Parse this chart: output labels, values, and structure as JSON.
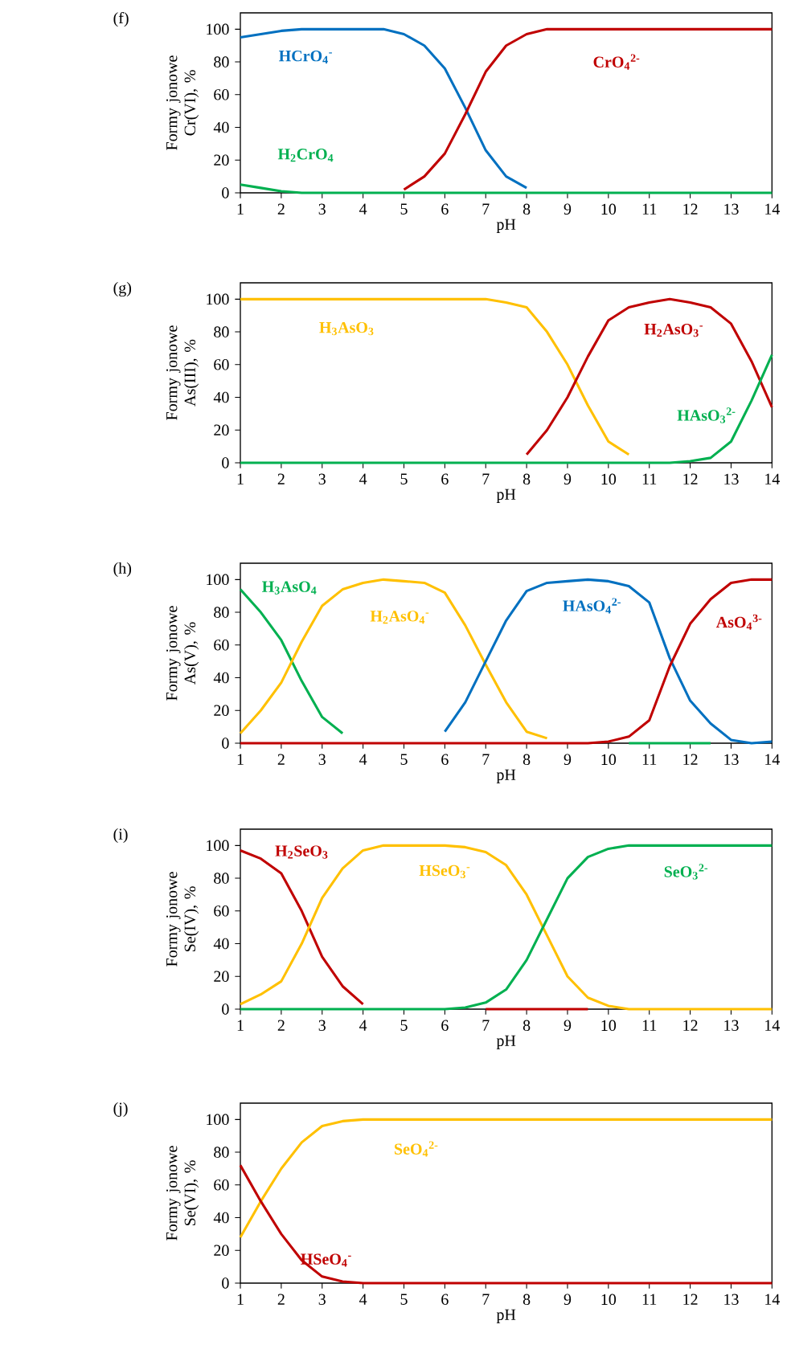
{
  "chart_data": [
    {
      "type": "line",
      "title": "(f)",
      "xlabel": "pH",
      "ylabel": "Formy jonowe Cr(VI), %",
      "x": [
        1,
        1.5,
        2,
        2.5,
        3,
        3.5,
        4,
        4.5,
        5,
        5.5,
        6,
        6.5,
        7,
        7.5,
        8,
        8.5,
        9,
        9.5,
        10,
        10.5,
        11,
        11.5,
        12,
        12.5,
        13,
        13.5,
        14
      ],
      "xlim": [
        1,
        14
      ],
      "ylim": [
        0,
        110
      ],
      "xticks": [
        1,
        2,
        3,
        4,
        5,
        6,
        7,
        8,
        9,
        10,
        11,
        12,
        13,
        14
      ],
      "yticks": [
        0,
        20,
        40,
        60,
        80,
        100
      ],
      "series": [
        {
          "name": "HCrO$_{4}$$^{-}$",
          "color": "#0070c0",
          "values": [
            95,
            97,
            99,
            100,
            100,
            100,
            100,
            100,
            97,
            90,
            76,
            52,
            26,
            10,
            3,
            null,
            null,
            null,
            null,
            null,
            null,
            null,
            null,
            null,
            null,
            null,
            null
          ]
        },
        {
          "name": "CrO$_{4}$$^{2-}$",
          "color": "#c00000",
          "values": [
            null,
            null,
            null,
            null,
            null,
            null,
            null,
            null,
            2,
            10,
            24,
            48,
            74,
            90,
            97,
            100,
            100,
            100,
            100,
            100,
            100,
            100,
            100,
            100,
            100,
            100,
            100
          ]
        },
        {
          "name": "H$_{2}$CrO$_{4}$",
          "color": "#00b050",
          "values": [
            5,
            3,
            1,
            0,
            0,
            0,
            0,
            0,
            0,
            0,
            0,
            0,
            0,
            0,
            0,
            0,
            0,
            0,
            0,
            0,
            0,
            0,
            0,
            0,
            0,
            0,
            0
          ]
        }
      ]
    },
    {
      "type": "line",
      "title": "(g)",
      "xlabel": "pH",
      "ylabel": "Formy jonowe As(III), %",
      "x": [
        1,
        1.5,
        2,
        2.5,
        3,
        3.5,
        4,
        4.5,
        5,
        5.5,
        6,
        6.5,
        7,
        7.5,
        8,
        8.5,
        9,
        9.5,
        10,
        10.5,
        11,
        11.5,
        12,
        12.5,
        13,
        13.5,
        14
      ],
      "xlim": [
        1,
        14
      ],
      "ylim": [
        0,
        110
      ],
      "xticks": [
        1,
        2,
        3,
        4,
        5,
        6,
        7,
        8,
        9,
        10,
        11,
        12,
        13,
        14
      ],
      "yticks": [
        0,
        20,
        40,
        60,
        80,
        100
      ],
      "series": [
        {
          "name": "H$_{3}$AsO$_{3}$",
          "color": "#ffc000",
          "values": [
            100,
            100,
            100,
            100,
            100,
            100,
            100,
            100,
            100,
            100,
            100,
            100,
            100,
            98,
            95,
            80,
            60,
            35,
            13,
            5,
            null,
            null,
            null,
            null,
            null,
            null,
            null
          ]
        },
        {
          "name": "H$_{2}$AsO$_{3}$$^{-}$",
          "color": "#c00000",
          "values": [
            null,
            null,
            null,
            null,
            null,
            null,
            null,
            null,
            null,
            null,
            null,
            null,
            null,
            null,
            5,
            20,
            40,
            65,
            87,
            95,
            98,
            100,
            98,
            95,
            85,
            62,
            34
          ]
        },
        {
          "name": "HAsO$_{3}$$^{2-}$",
          "color": "#00b050",
          "values": [
            0,
            0,
            0,
            0,
            0,
            0,
            0,
            0,
            0,
            0,
            0,
            0,
            0,
            0,
            0,
            0,
            0,
            0,
            0,
            0,
            0,
            0,
            1,
            3,
            13,
            38,
            66
          ]
        }
      ]
    },
    {
      "type": "line",
      "title": "(h)",
      "xlabel": "pH",
      "ylabel": "Formy jonowe As(V), %",
      "x": [
        1,
        1.5,
        2,
        2.5,
        3,
        3.5,
        4,
        4.5,
        5,
        5.5,
        6,
        6.5,
        7,
        7.5,
        8,
        8.5,
        9,
        9.5,
        10,
        10.5,
        11,
        11.5,
        12,
        12.5,
        13,
        13.5,
        14
      ],
      "xlim": [
        1,
        14
      ],
      "ylim": [
        0,
        110
      ],
      "xticks": [
        1,
        2,
        3,
        4,
        5,
        6,
        7,
        8,
        9,
        10,
        11,
        12,
        13,
        14
      ],
      "yticks": [
        0,
        20,
        40,
        60,
        80,
        100
      ],
      "series": [
        {
          "name": "H$_{3}$AsO$_{4}$",
          "color": "#00b050",
          "values": [
            94,
            80,
            63,
            38,
            16,
            6,
            null,
            null,
            null,
            null,
            null,
            null,
            null,
            null,
            null,
            null,
            null,
            null,
            null,
            0,
            0,
            0,
            0,
            0,
            null,
            null,
            null
          ]
        },
        {
          "name": "H$_{2}$AsO$_{4}$$^{-}$",
          "color": "#ffc000",
          "values": [
            6,
            20,
            37,
            62,
            84,
            94,
            98,
            100,
            99,
            98,
            92,
            72,
            48,
            25,
            7,
            3,
            null,
            null,
            null,
            null,
            null,
            null,
            null,
            null,
            null,
            null,
            null
          ]
        },
        {
          "name": "HAsO$_{4}$$^{2-}$",
          "color": "#0070c0",
          "values": [
            null,
            null,
            null,
            null,
            null,
            null,
            null,
            null,
            null,
            null,
            7,
            25,
            50,
            75,
            93,
            98,
            99,
            100,
            99,
            96,
            86,
            52,
            26,
            12,
            2,
            0,
            1
          ]
        },
        {
          "name": "AsO$_{4}$$^{3-}$",
          "color": "#c00000",
          "values": [
            0,
            0,
            0,
            0,
            0,
            0,
            0,
            0,
            0,
            0,
            0,
            0,
            0,
            0,
            0,
            0,
            0,
            0,
            1,
            4,
            14,
            47,
            73,
            88,
            98,
            100,
            100
          ]
        }
      ]
    },
    {
      "type": "line",
      "title": "(i)",
      "xlabel": "pH",
      "ylabel": "Formy jonowe Se(IV), %",
      "x": [
        1,
        1.5,
        2,
        2.5,
        3,
        3.5,
        4,
        4.5,
        5,
        5.5,
        6,
        6.5,
        7,
        7.5,
        8,
        8.5,
        9,
        9.5,
        10,
        10.5,
        11,
        11.5,
        12,
        12.5,
        13,
        13.5,
        14
      ],
      "xlim": [
        1,
        14
      ],
      "ylim": [
        0,
        110
      ],
      "xticks": [
        1,
        2,
        3,
        4,
        5,
        6,
        7,
        8,
        9,
        10,
        11,
        12,
        13,
        14
      ],
      "yticks": [
        0,
        20,
        40,
        60,
        80,
        100
      ],
      "series": [
        {
          "name": "H$_{2}$SeO$_{3}$",
          "color": "#c00000",
          "values": [
            97,
            92,
            83,
            60,
            32,
            14,
            3,
            null,
            null,
            null,
            null,
            null,
            0,
            0,
            0,
            0,
            0,
            0,
            null,
            null,
            null,
            null,
            null,
            null,
            null,
            null,
            null
          ]
        },
        {
          "name": "HSeO$_{3}$$^{-}$",
          "color": "#ffc000",
          "values": [
            3,
            9,
            17,
            40,
            68,
            86,
            97,
            100,
            100,
            100,
            100,
            99,
            96,
            88,
            70,
            45,
            20,
            7,
            2,
            0,
            0,
            0,
            0,
            0,
            0,
            0,
            0
          ]
        },
        {
          "name": "SeO$_{3}$$^{2-}$",
          "color": "#00b050",
          "values": [
            0,
            0,
            0,
            0,
            0,
            0,
            0,
            0,
            0,
            0,
            0,
            1,
            4,
            12,
            30,
            55,
            80,
            93,
            98,
            100,
            100,
            100,
            100,
            100,
            100,
            100,
            100
          ]
        }
      ]
    },
    {
      "type": "line",
      "title": "(j)",
      "xlabel": "pH",
      "ylabel": "Formy jonowe Se(VI), %",
      "x": [
        1,
        1.5,
        2,
        2.5,
        3,
        3.5,
        4,
        4.5,
        5,
        5.5,
        6,
        6.5,
        7,
        7.5,
        8,
        8.5,
        9,
        9.5,
        10,
        10.5,
        11,
        11.5,
        12,
        12.5,
        13,
        13.5,
        14
      ],
      "xlim": [
        1,
        14
      ],
      "ylim": [
        0,
        110
      ],
      "xticks": [
        1,
        2,
        3,
        4,
        5,
        6,
        7,
        8,
        9,
        10,
        11,
        12,
        13,
        14
      ],
      "yticks": [
        0,
        20,
        40,
        60,
        80,
        100
      ],
      "series": [
        {
          "name": "SeO$_{4}$$^{2-}$",
          "color": "#ffc000",
          "values": [
            28,
            50,
            70,
            86,
            96,
            99,
            100,
            100,
            100,
            100,
            100,
            100,
            100,
            100,
            100,
            100,
            100,
            100,
            100,
            100,
            100,
            100,
            100,
            100,
            100,
            100,
            100
          ]
        },
        {
          "name": "HSeO$_{4}$$^{-}$",
          "color": "#c00000",
          "values": [
            72,
            50,
            30,
            14,
            4,
            1,
            0,
            0,
            0,
            0,
            0,
            0,
            0,
            0,
            0,
            0,
            0,
            0,
            0,
            0,
            0,
            0,
            0,
            0,
            0,
            0,
            0
          ]
        }
      ]
    }
  ]
}
